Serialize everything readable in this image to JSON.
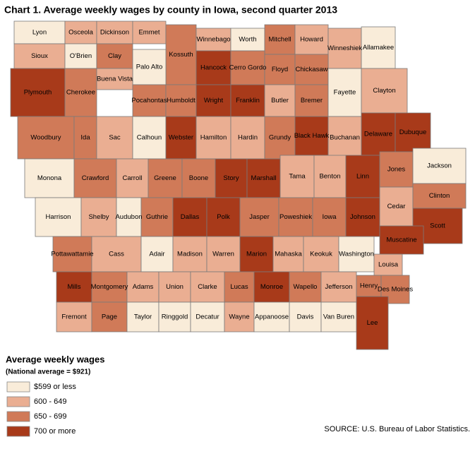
{
  "title": "Chart 1. Average weekly wages by county in Iowa, second quarter 2013",
  "counties": [
    {
      "name": "Lyon",
      "color": "#f9ecd9"
    },
    {
      "name": "Osceola",
      "color": "#eaae92"
    },
    {
      "name": "Dickinson",
      "color": "#eaae92"
    },
    {
      "name": "Emmet",
      "color": "#eaae92"
    },
    {
      "name": "Kossuth",
      "color": "#d07a58"
    },
    {
      "name": "Winnebago",
      "color": "#eaae92"
    },
    {
      "name": "Worth",
      "color": "#f9ecd9"
    },
    {
      "name": "Mitchell",
      "color": "#d07a58"
    },
    {
      "name": "Howard",
      "color": "#eaae92"
    },
    {
      "name": "Winneshiek",
      "color": "#eaae92"
    },
    {
      "name": "Allamakee",
      "color": "#f9ecd9"
    },
    {
      "name": "Sioux",
      "color": "#eaae92"
    },
    {
      "name": "O'Brien",
      "color": "#f9ecd9"
    },
    {
      "name": "Clay",
      "color": "#d07a58"
    },
    {
      "name": "Palo Alto",
      "color": "#f9ecd9"
    },
    {
      "name": "Hancock",
      "color": "#a83a1a"
    },
    {
      "name": "Cerro Gordo",
      "color": "#d07a58"
    },
    {
      "name": "Floyd",
      "color": "#d07a58"
    },
    {
      "name": "Chickasaw",
      "color": "#d07a58"
    },
    {
      "name": "Plymouth",
      "color": "#a83a1a"
    },
    {
      "name": "Cherokee",
      "color": "#d07a58"
    },
    {
      "name": "Buena Vista",
      "color": "#eaae92"
    },
    {
      "name": "Pocahontas",
      "color": "#d07a58"
    },
    {
      "name": "Humboldt",
      "color": "#d07a58"
    },
    {
      "name": "Wright",
      "color": "#a83a1a"
    },
    {
      "name": "Franklin",
      "color": "#a83a1a"
    },
    {
      "name": "Butler",
      "color": "#eaae92"
    },
    {
      "name": "Bremer",
      "color": "#d07a58"
    },
    {
      "name": "Fayette",
      "color": "#f9ecd9"
    },
    {
      "name": "Clayton",
      "color": "#eaae92"
    },
    {
      "name": "Woodbury",
      "color": "#d07a58"
    },
    {
      "name": "Ida",
      "color": "#d07a58"
    },
    {
      "name": "Sac",
      "color": "#eaae92"
    },
    {
      "name": "Calhoun",
      "color": "#f9ecd9"
    },
    {
      "name": "Webster",
      "color": "#a83a1a"
    },
    {
      "name": "Hamilton",
      "color": "#eaae92"
    },
    {
      "name": "Hardin",
      "color": "#eaae92"
    },
    {
      "name": "Grundy",
      "color": "#d07a58"
    },
    {
      "name": "Black Hawk",
      "color": "#a83a1a"
    },
    {
      "name": "Buchanan",
      "color": "#eaae92"
    },
    {
      "name": "Delaware",
      "color": "#a83a1a"
    },
    {
      "name": "Dubuque",
      "color": "#a83a1a"
    },
    {
      "name": "Monona",
      "color": "#f9ecd9"
    },
    {
      "name": "Crawford",
      "color": "#d07a58"
    },
    {
      "name": "Carroll",
      "color": "#eaae92"
    },
    {
      "name": "Greene",
      "color": "#d07a58"
    },
    {
      "name": "Boone",
      "color": "#d07a58"
    },
    {
      "name": "Story",
      "color": "#a83a1a"
    },
    {
      "name": "Marshall",
      "color": "#a83a1a"
    },
    {
      "name": "Tama",
      "color": "#eaae92"
    },
    {
      "name": "Benton",
      "color": "#eaae92"
    },
    {
      "name": "Linn",
      "color": "#a83a1a"
    },
    {
      "name": "Jones",
      "color": "#d07a58"
    },
    {
      "name": "Jackson",
      "color": "#f9ecd9"
    },
    {
      "name": "Harrison",
      "color": "#f9ecd9"
    },
    {
      "name": "Shelby",
      "color": "#eaae92"
    },
    {
      "name": "Audubon",
      "color": "#f9ecd9"
    },
    {
      "name": "Guthrie",
      "color": "#d07a58"
    },
    {
      "name": "Dallas",
      "color": "#a83a1a"
    },
    {
      "name": "Polk",
      "color": "#a83a1a"
    },
    {
      "name": "Jasper",
      "color": "#d07a58"
    },
    {
      "name": "Poweshiek",
      "color": "#d07a58"
    },
    {
      "name": "Iowa",
      "color": "#d07a58"
    },
    {
      "name": "Johnson",
      "color": "#a83a1a"
    },
    {
      "name": "Cedar",
      "color": "#eaae92"
    },
    {
      "name": "Clinton",
      "color": "#d07a58"
    },
    {
      "name": "Scott",
      "color": "#a83a1a"
    },
    {
      "name": "Pottawattamie",
      "color": "#d07a58"
    },
    {
      "name": "Cass",
      "color": "#eaae92"
    },
    {
      "name": "Adair",
      "color": "#f9ecd9"
    },
    {
      "name": "Madison",
      "color": "#eaae92"
    },
    {
      "name": "Warren",
      "color": "#eaae92"
    },
    {
      "name": "Marion",
      "color": "#a83a1a"
    },
    {
      "name": "Mahaska",
      "color": "#eaae92"
    },
    {
      "name": "Keokuk",
      "color": "#eaae92"
    },
    {
      "name": "Washington",
      "color": "#f9ecd9"
    },
    {
      "name": "Muscatine",
      "color": "#a83a1a"
    },
    {
      "name": "Louisa",
      "color": "#eaae92"
    },
    {
      "name": "Mills",
      "color": "#a83a1a"
    },
    {
      "name": "Montgomery",
      "color": "#d07a58"
    },
    {
      "name": "Adams",
      "color": "#eaae92"
    },
    {
      "name": "Union",
      "color": "#eaae92"
    },
    {
      "name": "Clarke",
      "color": "#eaae92"
    },
    {
      "name": "Lucas",
      "color": "#d07a58"
    },
    {
      "name": "Monroe",
      "color": "#a83a1a"
    },
    {
      "name": "Wapello",
      "color": "#d07a58"
    },
    {
      "name": "Jefferson",
      "color": "#eaae92"
    },
    {
      "name": "Henry",
      "color": "#d07a58"
    },
    {
      "name": "Des Moines",
      "color": "#d07a58"
    },
    {
      "name": "Fremont",
      "color": "#eaae92"
    },
    {
      "name": "Page",
      "color": "#d07a58"
    },
    {
      "name": "Taylor",
      "color": "#f9ecd9"
    },
    {
      "name": "Ringgold",
      "color": "#f9ecd9"
    },
    {
      "name": "Decatur",
      "color": "#f9ecd9"
    },
    {
      "name": "Wayne",
      "color": "#eaae92"
    },
    {
      "name": "Appanoose",
      "color": "#f9ecd9"
    },
    {
      "name": "Davis",
      "color": "#f9ecd9"
    },
    {
      "name": "Van Buren",
      "color": "#f9ecd9"
    },
    {
      "name": "Lee",
      "color": "#a83a1a"
    }
  ],
  "legend": {
    "title": "Average weekly wages",
    "note": "(National average = $921)",
    "items": [
      {
        "label": "$599 or less",
        "color": "#f9ecd9"
      },
      {
        "label": "600 - 649",
        "color": "#eaae92"
      },
      {
        "label": "650 - 699",
        "color": "#d07a58"
      },
      {
        "label": "700 or more",
        "color": "#a83a1a"
      }
    ]
  },
  "source": "SOURCE: U.S. Bureau of Labor Statistics."
}
